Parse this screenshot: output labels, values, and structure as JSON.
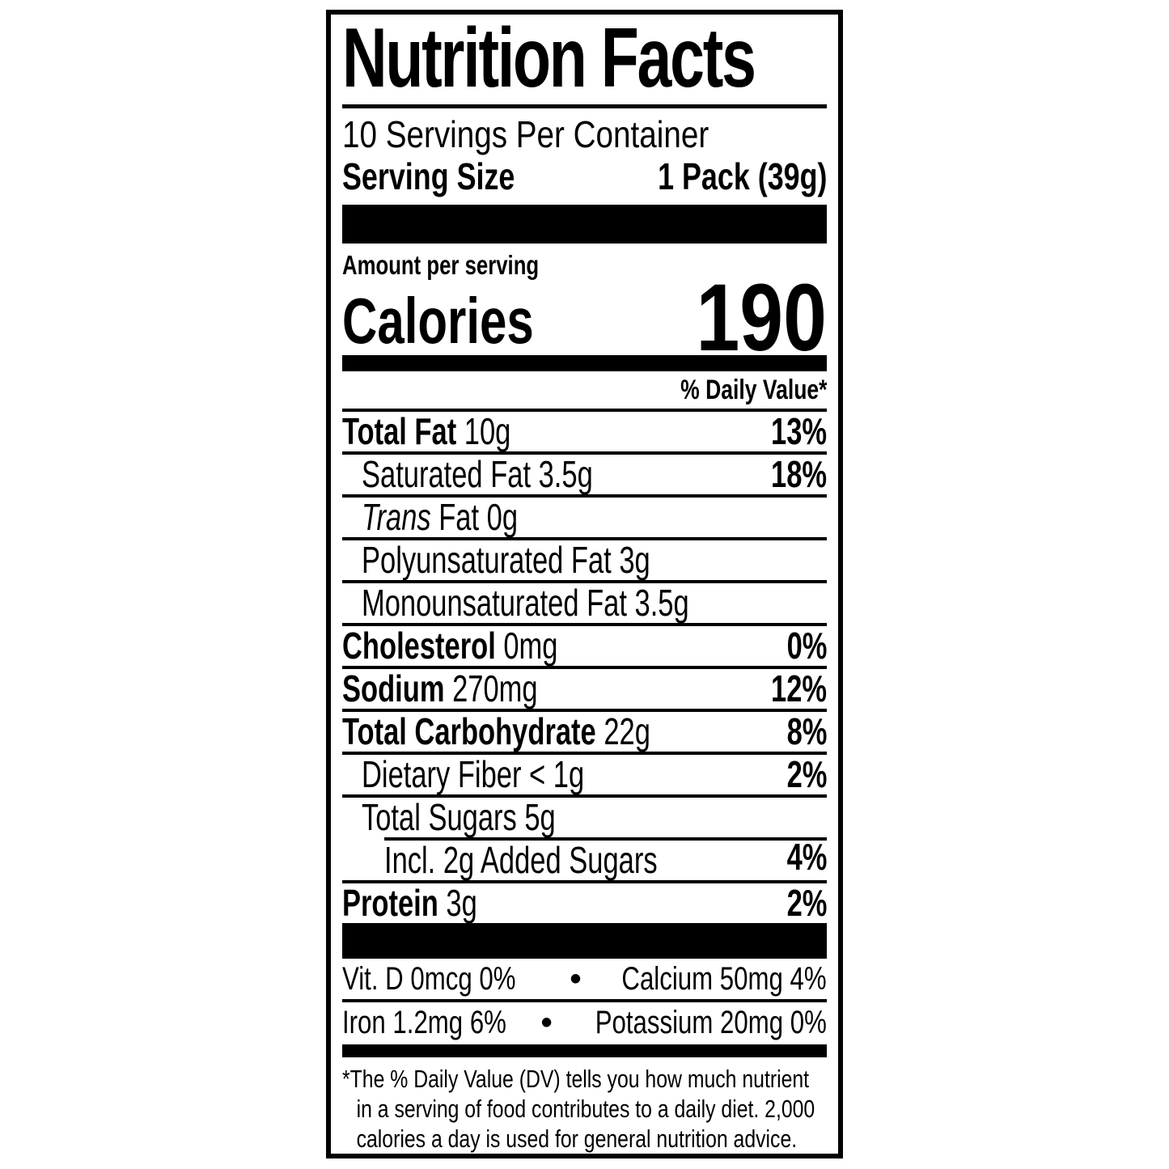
{
  "colors": {
    "ink": "#000000",
    "background": "#ffffff"
  },
  "label": {
    "title": "Nutrition Facts",
    "servings_per_container": "10 Servings Per Container",
    "serving_size_label": "Serving Size",
    "serving_size_value": "1 Pack (39g)",
    "amount_per_serving": "Amount per serving",
    "calories_label": "Calories",
    "calories_value": "190",
    "daily_value_header": "% Daily Value*",
    "rows": [
      {
        "b": "Total Fat",
        "r": " 10g",
        "dv": "13%"
      },
      {
        "r": "Saturated Fat 3.5g",
        "dv": "18%"
      },
      {
        "i": "Trans",
        "r": " Fat 0g",
        "dv": ""
      },
      {
        "r": "Polyunsaturated Fat 3g",
        "dv": ""
      },
      {
        "r": "Monounsaturated Fat 3.5g",
        "dv": ""
      },
      {
        "b": "Cholesterol",
        "r": " 0mg",
        "dv": "0%"
      },
      {
        "b": "Sodium",
        "r": " 270mg",
        "dv": "12%"
      },
      {
        "b": "Total Carbohydrate",
        "r": " 22g",
        "dv": "8%"
      },
      {
        "r": "Dietary Fiber < 1g",
        "dv": "2%"
      },
      {
        "r": "Total Sugars 5g",
        "dv": ""
      },
      {
        "r": "Incl. 2g Added Sugars",
        "dv": "4%"
      },
      {
        "b": "Protein",
        "r": " 3g",
        "dv": "2%"
      }
    ],
    "micronutrients": [
      {
        "left": "Vit. D 0mcg 0%",
        "bullet": "•",
        "right": "Calcium 50mg 4%"
      },
      {
        "left": "Iron 1.2mg 6%",
        "bullet": "•",
        "right": "Potassium 20mg 0%"
      }
    ],
    "footnote_lines": [
      "*The % Daily Value (DV) tells you how much nutrient",
      "in a serving of food contributes to a daily diet. 2,000",
      "calories a day is used for general nutrition advice."
    ]
  }
}
